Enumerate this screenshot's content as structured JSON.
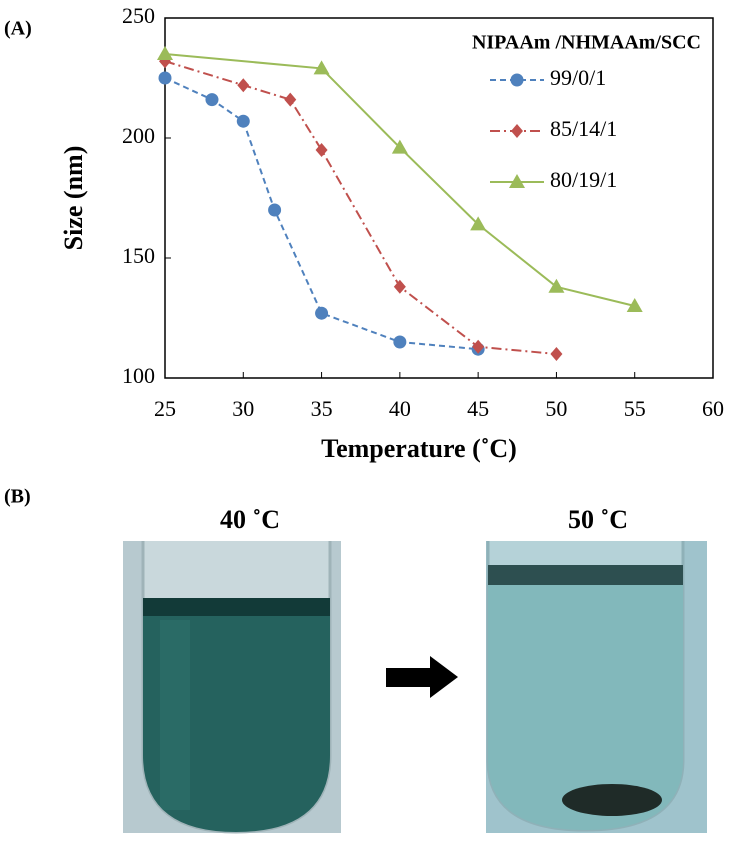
{
  "panel_a_label": "(A)",
  "chart_data": {
    "type": "line",
    "x_label": "Temperature (˚C)",
    "y_label": "Size (nm)",
    "legend_title": "NIPAAm /NHMAAm/SCC",
    "legend": "upper right",
    "grid": false,
    "xlim": [
      25,
      60
    ],
    "xticks": [
      25,
      30,
      35,
      40,
      45,
      50,
      55,
      60
    ],
    "ylim": [
      100,
      250
    ],
    "yticks": [
      100,
      150,
      200,
      250
    ],
    "series": [
      {
        "name": "99/0/1",
        "color": "#4f81bd",
        "marker": "circle",
        "dash": "6,4",
        "x": [
          25,
          28,
          30,
          32,
          35,
          40,
          45
        ],
        "values": [
          225,
          216,
          207,
          170,
          127,
          115,
          112
        ]
      },
      {
        "name": "85/14/1",
        "color": "#c0504d",
        "marker": "diamond",
        "dash": "10,4,2,4",
        "x": [
          25,
          30,
          33,
          35,
          40,
          45,
          50
        ],
        "values": [
          232,
          222,
          216,
          195,
          138,
          113,
          110
        ]
      },
      {
        "name": "80/19/1",
        "color": "#9bbb59",
        "marker": "triangle",
        "dash": "none",
        "x": [
          25,
          35,
          40,
          45,
          50,
          55
        ],
        "values": [
          235,
          229,
          196,
          164,
          138,
          130
        ]
      }
    ]
  },
  "panel_b": {
    "label": "(B)",
    "photos": [
      {
        "label": "40 ˚C"
      },
      {
        "label": "50 ˚C"
      }
    ]
  }
}
